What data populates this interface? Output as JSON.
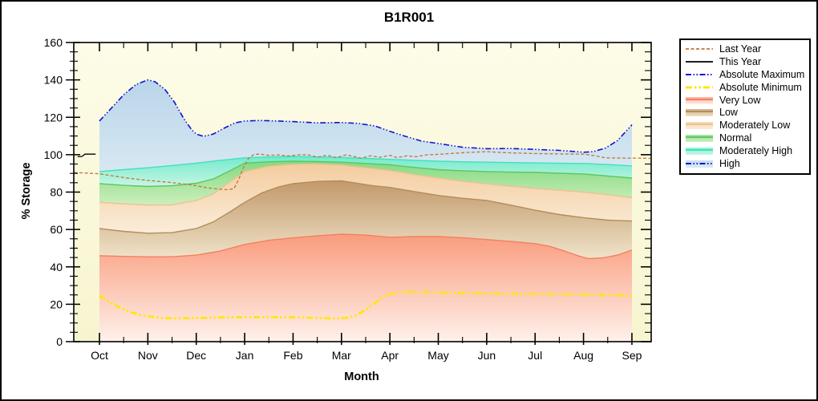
{
  "figure": {
    "title": "B1R001"
  },
  "legend": {
    "items": [
      {
        "label": "Last Year",
        "kind": "line",
        "line": "last-year"
      },
      {
        "label": "This Year",
        "kind": "line",
        "line": "this-year"
      },
      {
        "label": "Absolute Maximum",
        "kind": "line",
        "line": "absolute-maximum"
      },
      {
        "label": "Absolute Minimum",
        "kind": "line",
        "line": "absolute-minimum"
      },
      {
        "label": "Very Low",
        "kind": "band",
        "band": "very-low"
      },
      {
        "label": "Low",
        "kind": "band",
        "band": "low"
      },
      {
        "label": "Moderately Low",
        "kind": "band",
        "band": "moderately-low"
      },
      {
        "label": "Normal",
        "kind": "band",
        "band": "normal"
      },
      {
        "label": "Moderately High",
        "kind": "band",
        "band": "moderately-high"
      },
      {
        "label": "High",
        "kind": "band",
        "band": "high",
        "line": "absolute-maximum"
      }
    ]
  },
  "chart_data": {
    "type": "area",
    "title": "B1R001",
    "xlabel": "Month",
    "ylabel": "% Storage",
    "ylim": [
      0,
      160
    ],
    "y_tick_step": 20,
    "y_minor_step": 5,
    "y_ticks": [
      0,
      20,
      40,
      60,
      80,
      100,
      120,
      140,
      160
    ],
    "x_categories": [
      "Oct",
      "Nov",
      "Dec",
      "Jan",
      "Feb",
      "Mar",
      "Apr",
      "May",
      "Jun",
      "Jul",
      "Aug",
      "Sep"
    ],
    "units_note": "series points are [month_index, percent_storage]; 0=Oct, 11=Sep, fractions are within-month",
    "plot_bg_top": "#FDFCE8",
    "plot_bg_bottom": "#F7F5CF",
    "series": {
      "abs_max": [
        [
          0,
          118
        ],
        [
          0.25,
          125
        ],
        [
          0.5,
          132
        ],
        [
          0.75,
          137.5
        ],
        [
          1,
          140
        ],
        [
          1.15,
          139
        ],
        [
          1.35,
          135
        ],
        [
          1.55,
          128
        ],
        [
          1.75,
          119
        ],
        [
          1.9,
          113.5
        ],
        [
          2,
          111
        ],
        [
          2.15,
          109.8
        ],
        [
          2.35,
          111
        ],
        [
          2.6,
          114.5
        ],
        [
          2.8,
          117
        ],
        [
          3,
          118
        ],
        [
          3.3,
          118.3
        ],
        [
          3.7,
          118
        ],
        [
          4,
          117.7
        ],
        [
          4.5,
          117
        ],
        [
          5,
          117.2
        ],
        [
          5.35,
          116.7
        ],
        [
          5.7,
          115.3
        ],
        [
          6,
          112.5
        ],
        [
          6.3,
          110
        ],
        [
          6.65,
          107.3
        ],
        [
          7,
          106
        ],
        [
          7.5,
          104
        ],
        [
          8,
          103.2
        ],
        [
          8.5,
          103.3
        ],
        [
          9,
          102.8
        ],
        [
          9.5,
          102.3
        ],
        [
          10,
          101.3
        ],
        [
          10.2,
          101.6
        ],
        [
          10.45,
          103.5
        ],
        [
          10.7,
          107.5
        ],
        [
          11,
          116
        ]
      ],
      "abs_min": [
        [
          0,
          24.5
        ],
        [
          0.2,
          21.5
        ],
        [
          0.4,
          18.5
        ],
        [
          0.6,
          16.2
        ],
        [
          0.8,
          14.6
        ],
        [
          1,
          13.6
        ],
        [
          1.25,
          12.8
        ],
        [
          1.5,
          12.5
        ],
        [
          2,
          12.6
        ],
        [
          2.5,
          12.9
        ],
        [
          3,
          13.1
        ],
        [
          3.5,
          13.1
        ],
        [
          4,
          13
        ],
        [
          4.5,
          12.7
        ],
        [
          4.9,
          12.4
        ],
        [
          5.1,
          12.7
        ],
        [
          5.3,
          14
        ],
        [
          5.5,
          17
        ],
        [
          5.7,
          21
        ],
        [
          5.9,
          24.5
        ],
        [
          6.1,
          26.2
        ],
        [
          6.4,
          26.6
        ],
        [
          6.8,
          26.4
        ],
        [
          7.2,
          26.1
        ],
        [
          7.6,
          26
        ],
        [
          8,
          25.8
        ],
        [
          8.5,
          25.7
        ],
        [
          9,
          25.5
        ],
        [
          9.5,
          25.4
        ],
        [
          10,
          25.2
        ],
        [
          10.5,
          25
        ],
        [
          11,
          24.6
        ]
      ],
      "last_year": [
        [
          -0.52,
          90.5
        ],
        [
          0,
          89.8
        ],
        [
          0.3,
          88.6
        ],
        [
          0.6,
          87.4
        ],
        [
          1,
          86.2
        ],
        [
          1.4,
          85.3
        ],
        [
          1.8,
          84.2
        ],
        [
          2,
          83.4
        ],
        [
          2.2,
          82.4
        ],
        [
          2.45,
          81.6
        ],
        [
          2.65,
          81.3
        ],
        [
          2.78,
          81.8
        ],
        [
          2.88,
          87
        ],
        [
          2.98,
          93.5
        ],
        [
          3.08,
          98
        ],
        [
          3.2,
          100.3
        ],
        [
          3.35,
          100.2
        ],
        [
          3.5,
          99.6
        ],
        [
          3.7,
          99.9
        ],
        [
          3.9,
          99.3
        ],
        [
          4.1,
          99.9
        ],
        [
          4.3,
          100
        ],
        [
          4.5,
          98.7
        ],
        [
          4.7,
          99.7
        ],
        [
          4.9,
          98.4
        ],
        [
          5.1,
          99.9
        ],
        [
          5.25,
          99.1
        ],
        [
          5.4,
          98.1
        ],
        [
          5.6,
          99.4
        ],
        [
          5.8,
          98.6
        ],
        [
          6,
          99.7
        ],
        [
          6.15,
          98.4
        ],
        [
          6.35,
          99.4
        ],
        [
          6.55,
          98.9
        ],
        [
          6.75,
          99.9
        ],
        [
          7,
          100.2
        ],
        [
          7.3,
          100.7
        ],
        [
          7.6,
          101.2
        ],
        [
          8,
          101.6
        ],
        [
          8.3,
          101.2
        ],
        [
          8.6,
          100.9
        ],
        [
          9,
          100.6
        ],
        [
          9.5,
          100.4
        ],
        [
          10,
          100.3
        ],
        [
          10.25,
          99.4
        ],
        [
          10.45,
          98.3
        ],
        [
          10.8,
          98.2
        ],
        [
          11.1,
          98.2
        ],
        [
          11.38,
          98
        ]
      ],
      "this_year": [
        [
          -0.45,
          98.9
        ],
        [
          -0.36,
          99.1
        ],
        [
          -0.3,
          100.3
        ],
        [
          -0.08,
          100.3
        ]
      ],
      "very_low_top": [
        [
          0,
          46
        ],
        [
          0.5,
          45.6
        ],
        [
          1,
          45.4
        ],
        [
          1.5,
          45.4
        ],
        [
          2,
          46.3
        ],
        [
          2.5,
          48.5
        ],
        [
          3,
          52
        ],
        [
          3.5,
          54.2
        ],
        [
          4,
          55.5
        ],
        [
          4.5,
          56.6
        ],
        [
          5,
          57.5
        ],
        [
          5.5,
          57
        ],
        [
          6,
          55.8
        ],
        [
          6.5,
          56.2
        ],
        [
          7,
          56.2
        ],
        [
          7.5,
          55.6
        ],
        [
          8,
          54.6
        ],
        [
          8.5,
          53.6
        ],
        [
          9,
          52.4
        ],
        [
          9.3,
          51
        ],
        [
          9.6,
          48.5
        ],
        [
          9.9,
          45.8
        ],
        [
          10.1,
          44.4
        ],
        [
          10.4,
          44.8
        ],
        [
          10.7,
          46.3
        ],
        [
          11,
          49
        ]
      ],
      "low_top": [
        [
          0,
          60.5
        ],
        [
          0.5,
          59
        ],
        [
          1,
          58
        ],
        [
          1.5,
          58.3
        ],
        [
          2,
          60.5
        ],
        [
          2.35,
          64
        ],
        [
          2.7,
          69.5
        ],
        [
          3,
          74.5
        ],
        [
          3.35,
          79.5
        ],
        [
          3.7,
          82.8
        ],
        [
          4,
          84.5
        ],
        [
          4.5,
          85.7
        ],
        [
          5,
          86
        ],
        [
          5.3,
          84.8
        ],
        [
          5.65,
          83.4
        ],
        [
          6,
          82.5
        ],
        [
          6.5,
          80.3
        ],
        [
          7,
          78.2
        ],
        [
          7.5,
          76.7
        ],
        [
          8,
          75.5
        ],
        [
          8.5,
          73
        ],
        [
          9,
          70.3
        ],
        [
          9.5,
          68
        ],
        [
          10,
          66.3
        ],
        [
          10.5,
          65
        ],
        [
          11,
          64.5
        ]
      ],
      "mod_low_top": [
        [
          0,
          74.5
        ],
        [
          0.5,
          73.7
        ],
        [
          1,
          73
        ],
        [
          1.5,
          73.2
        ],
        [
          2,
          75.5
        ],
        [
          2.35,
          79
        ],
        [
          2.7,
          85.5
        ],
        [
          3,
          91
        ],
        [
          3.5,
          93.8
        ],
        [
          4,
          94.8
        ],
        [
          4.5,
          95
        ],
        [
          5,
          94.4
        ],
        [
          5.5,
          93
        ],
        [
          6,
          91.5
        ],
        [
          6.5,
          89.4
        ],
        [
          7,
          87.5
        ],
        [
          7.5,
          85.8
        ],
        [
          8,
          84.4
        ],
        [
          8.5,
          83.1
        ],
        [
          9,
          82
        ],
        [
          9.5,
          81
        ],
        [
          10,
          80
        ],
        [
          10.5,
          78.6
        ],
        [
          11,
          77
        ]
      ],
      "normal_top": [
        [
          0,
          84.5
        ],
        [
          0.5,
          83.6
        ],
        [
          1,
          83
        ],
        [
          1.5,
          83.4
        ],
        [
          2,
          84.7
        ],
        [
          2.35,
          87
        ],
        [
          2.7,
          91.5
        ],
        [
          3,
          95.5
        ],
        [
          3.5,
          96.2
        ],
        [
          4,
          96.5
        ],
        [
          4.5,
          96.3
        ],
        [
          5,
          96
        ],
        [
          5.5,
          95.3
        ],
        [
          6,
          94.6
        ],
        [
          6.5,
          93.2
        ],
        [
          7,
          92
        ],
        [
          7.5,
          91.4
        ],
        [
          8,
          91
        ],
        [
          8.5,
          90.7
        ],
        [
          9,
          90.5
        ],
        [
          9.5,
          90.1
        ],
        [
          10,
          89.7
        ],
        [
          10.5,
          88.6
        ],
        [
          11,
          87.5
        ]
      ],
      "mod_high_top": [
        [
          0,
          91
        ],
        [
          0.5,
          92
        ],
        [
          1,
          93
        ],
        [
          1.5,
          94.2
        ],
        [
          2,
          95.5
        ],
        [
          2.5,
          97
        ],
        [
          3,
          98.3
        ],
        [
          3.5,
          98.8
        ],
        [
          4,
          99
        ],
        [
          4.5,
          98.8
        ],
        [
          5,
          98.5
        ],
        [
          5.5,
          98
        ],
        [
          6,
          97.5
        ],
        [
          6.5,
          97
        ],
        [
          7,
          96.5
        ],
        [
          7.5,
          96.2
        ],
        [
          8,
          96
        ],
        [
          8.5,
          95.8
        ],
        [
          9,
          95.6
        ],
        [
          9.5,
          95.4
        ],
        [
          10,
          95.3
        ],
        [
          10.5,
          94.7
        ],
        [
          11,
          94
        ]
      ]
    },
    "bands": [
      {
        "name": "very-low",
        "label": "Very Low",
        "lower": "zero",
        "upper": "very_low_top",
        "edge": "#F28063",
        "fill_top": "#FA9B7C",
        "fill_bottom": "#FEF1EB",
        "grad": [
          58,
          0
        ]
      },
      {
        "name": "low",
        "label": "Low",
        "lower": "very_low_top",
        "upper": "low_top",
        "edge": "#B38D58",
        "fill_top": "#C2996B",
        "fill_bottom": "#EFE2C8",
        "grad": [
          86,
          45
        ]
      },
      {
        "name": "moderately-low",
        "label": "Moderately Low",
        "lower": "low_top",
        "upper": "mod_low_top",
        "edge": "#EDC291",
        "fill_top": "#F4CC9F",
        "fill_bottom": "#FAEDDA",
        "grad": [
          95,
          58
        ]
      },
      {
        "name": "normal",
        "label": "Normal",
        "lower": "mod_low_top",
        "upper": "normal_top",
        "edge": "#5BC75F",
        "fill_top": "#84D981",
        "fill_bottom": "#CCEFBC",
        "grad": [
          96.5,
          73
        ]
      },
      {
        "name": "moderately-high",
        "label": "Moderately High",
        "lower": "normal_top",
        "upper": "mod_high_top",
        "edge": "#3FE2BC",
        "fill_top": "#73EBCB",
        "fill_bottom": "#C8F5E4",
        "grad": [
          99,
          83
        ]
      },
      {
        "name": "high",
        "label": "High",
        "lower": "mod_high_top",
        "upper": "abs_max",
        "edge": "none",
        "fill_top": "#B9D5E9",
        "fill_bottom": "#D9E9F3",
        "grad": [
          140,
          88
        ]
      }
    ],
    "lines": [
      {
        "name": "last-year",
        "label": "Last Year",
        "series": "last_year",
        "color": "#C2763B",
        "width": 1.3,
        "dash": "4 2.5"
      },
      {
        "name": "this-year",
        "label": "This Year",
        "series": "this_year",
        "color": "#000000",
        "width": 1.3,
        "dash": ""
      },
      {
        "name": "absolute-maximum",
        "label": "Absolute Maximum",
        "series": "abs_max",
        "color": "#1212D0",
        "width": 1.6,
        "dash": "7 2.5 1.5 2.5 1.5 2.5"
      },
      {
        "name": "absolute-minimum",
        "label": "Absolute Minimum",
        "series": "abs_min",
        "color": "#FFE70A",
        "width": 2.8,
        "dash": "8 3 2.5 3 2.5 3"
      }
    ]
  }
}
